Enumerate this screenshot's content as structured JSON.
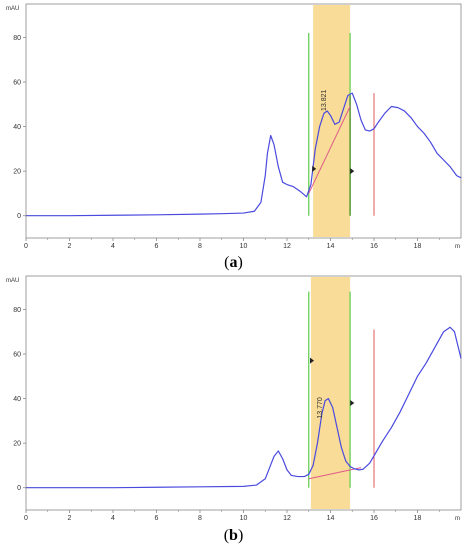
{
  "captions": [
    {
      "open": "(",
      "letter": "a",
      "close": ")"
    },
    {
      "open": "(",
      "letter": "b",
      "close": ")"
    }
  ],
  "colors": {
    "trace": "#4a4adf",
    "highlight": "#f8dc98",
    "green_marker": "#5ccc4a",
    "olive_marker": "#3d8a1e",
    "red_marker": "#e05858",
    "baseline": "#e05a8a",
    "axis": "#888888"
  },
  "chart_data": [
    {
      "type": "line",
      "title": "",
      "ylabel": "mAU",
      "xlabel": "min",
      "y_unit_label": "mAU",
      "x_unit_label": "m",
      "xlim": [
        0,
        20
      ],
      "ylim": [
        -10,
        95
      ],
      "xticks": [
        0,
        2,
        4,
        6,
        8,
        10,
        12,
        14,
        16,
        18
      ],
      "yticks": [
        0,
        20,
        40,
        60,
        80
      ],
      "grid": false,
      "highlight_range": [
        13.2,
        14.9
      ],
      "markers": {
        "green": [
          13.0,
          14.9
        ],
        "olive": [
          14.9
        ],
        "red": [
          16.0
        ]
      },
      "peak_label": {
        "text": "13.821",
        "x": 13.8,
        "y": 47
      },
      "integration_baseline": [
        [
          13.0,
          10
        ],
        [
          14.9,
          49
        ]
      ],
      "series": [
        {
          "x": [
            0,
            2,
            4,
            6,
            8,
            9,
            10,
            10.5,
            10.8,
            11.0,
            11.1,
            11.25,
            11.4,
            11.6,
            11.8,
            12.0,
            12.3,
            12.6,
            12.9,
            13.1,
            13.3,
            13.5,
            13.7,
            13.85,
            14.0,
            14.2,
            14.4,
            14.6,
            14.8,
            15.0,
            15.2,
            15.4,
            15.6,
            15.8,
            16.0,
            16.2,
            16.5,
            16.8,
            17.1,
            17.4,
            17.7,
            18.0,
            18.3,
            18.6,
            18.9,
            19.2,
            19.5,
            19.8,
            20.0
          ],
          "y": [
            0,
            0,
            0.2,
            0.4,
            0.7,
            0.9,
            1.2,
            2,
            6,
            18,
            28,
            36,
            32,
            22,
            15,
            14,
            13,
            11,
            8.5,
            14,
            30,
            40,
            46,
            47,
            45,
            41,
            42,
            48,
            54,
            55,
            50,
            43,
            38.5,
            38,
            39,
            42,
            46,
            49,
            48.5,
            47,
            44,
            40,
            37,
            33,
            28,
            25,
            22,
            18,
            17
          ]
        }
      ]
    },
    {
      "type": "line",
      "title": "",
      "ylabel": "mAU",
      "xlabel": "min",
      "y_unit_label": "mAU",
      "x_unit_label": "m",
      "xlim": [
        0,
        20
      ],
      "ylim": [
        -10,
        95
      ],
      "xticks": [
        0,
        2,
        4,
        6,
        8,
        10,
        12,
        14,
        16,
        18
      ],
      "yticks": [
        0,
        20,
        40,
        60,
        80
      ],
      "grid": false,
      "highlight_range": [
        13.1,
        14.9
      ],
      "markers": {
        "green": [
          13.0,
          14.9
        ],
        "olive": [],
        "red": [
          16.0
        ]
      },
      "peak_label": {
        "text": "13.770",
        "x": 13.6,
        "y": 31
      },
      "integration_baseline": [
        [
          13.0,
          4
        ],
        [
          15.4,
          9
        ]
      ],
      "series": [
        {
          "x": [
            0,
            2,
            4,
            6,
            8,
            10,
            10.6,
            11.0,
            11.2,
            11.4,
            11.6,
            11.8,
            12.0,
            12.2,
            12.5,
            12.8,
            13.0,
            13.2,
            13.4,
            13.6,
            13.75,
            13.9,
            14.1,
            14.3,
            14.5,
            14.7,
            14.9,
            15.1,
            15.3,
            15.5,
            15.8,
            16.1,
            16.4,
            16.8,
            17.2,
            17.6,
            18.0,
            18.4,
            18.8,
            19.2,
            19.5,
            19.7,
            19.85,
            20.0
          ],
          "y": [
            0,
            0,
            0,
            0.2,
            0.4,
            0.6,
            1.2,
            4,
            9,
            14,
            16.5,
            13,
            8,
            5.5,
            5,
            5,
            6,
            10,
            20,
            33,
            39,
            40,
            36,
            27,
            18,
            12,
            9.5,
            8.5,
            8,
            8.3,
            11,
            16,
            21,
            27,
            34,
            42,
            50,
            56,
            63,
            70,
            72,
            70,
            64,
            58
          ]
        }
      ]
    }
  ]
}
